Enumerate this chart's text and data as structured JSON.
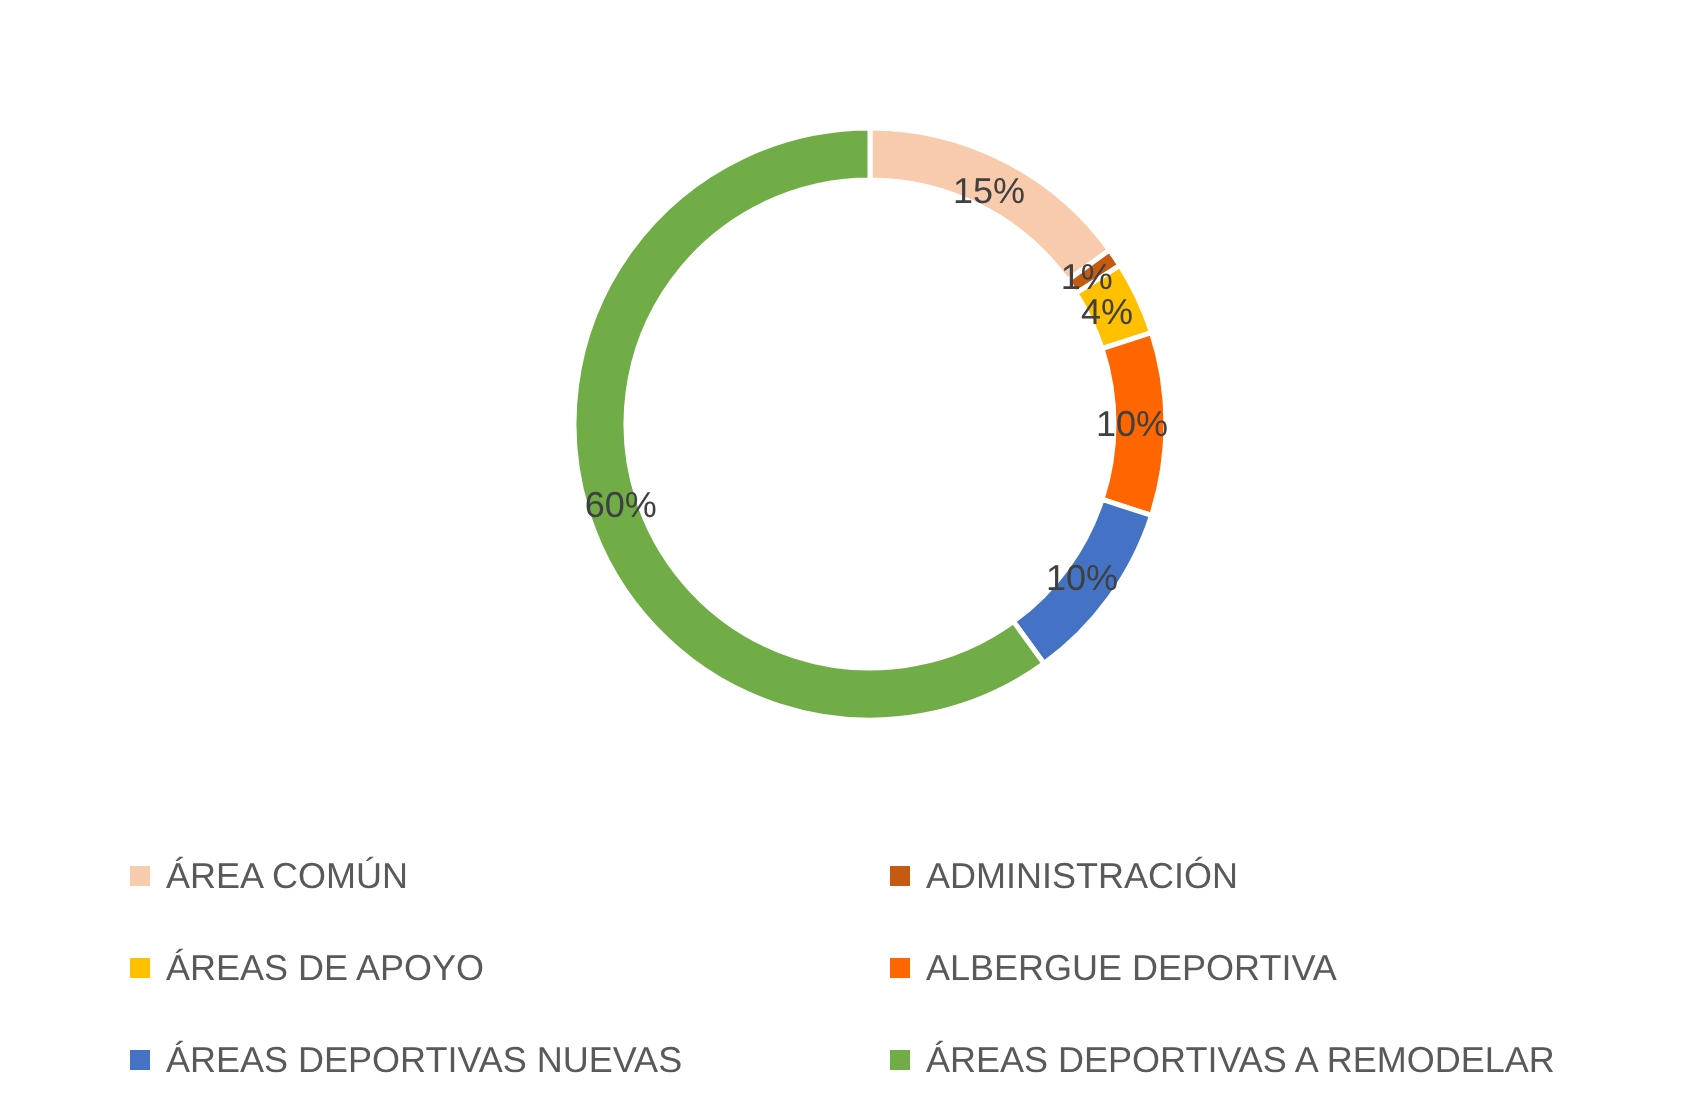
{
  "chart_data": {
    "type": "donut",
    "categories": [
      "ÁREA COMÚN",
      "ADMINISTRACIÓN",
      "ÁREAS DE APOYO",
      "ALBERGUE DEPORTIVA",
      "ÁREAS DEPORTIVAS NUEVAS",
      "ÁREAS DEPORTIVAS A REMODELAR"
    ],
    "values": [
      15,
      1,
      4,
      10,
      10,
      60
    ],
    "colors": [
      "#f8cbad",
      "#c55a11",
      "#ffc000",
      "#ff6600",
      "#4472c4",
      "#70ad47"
    ],
    "value_labels": [
      "15%",
      "1%",
      "4%",
      "10%",
      "10%",
      "60%"
    ],
    "legend": "bottom"
  }
}
